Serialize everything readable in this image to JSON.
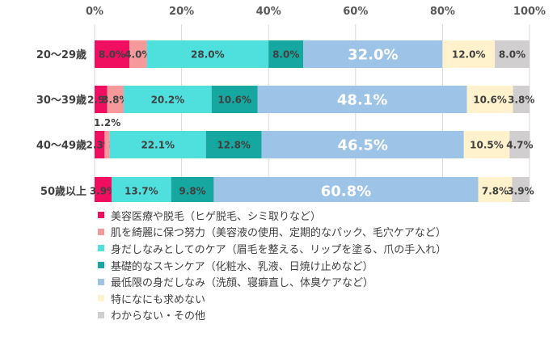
{
  "chart_data": {
    "type": "bar",
    "orientation": "horizontal",
    "stacked": "percent",
    "categories": [
      "20〜29歳",
      "30〜39歳",
      "40〜49歳",
      "50歳以上"
    ],
    "xlim": [
      0,
      100
    ],
    "x_ticks": [
      "0%",
      "20%",
      "40%",
      "60%",
      "80%",
      "100%"
    ],
    "grid": "vertical",
    "legend_position": "bottom",
    "series": [
      {
        "name": "美容医療や脱毛（ヒゲ脱毛、シミ取りなど）",
        "color": "#ef0e5f",
        "values": [
          8.0,
          2.9,
          2.3,
          3.9
        ],
        "labels": [
          "8.0%",
          "2.9%",
          "2.3%",
          "3.9%"
        ]
      },
      {
        "name": "肌を綺麗に保つ努力（美容液の使用、定期的なパック、毛穴ケアなど）",
        "color": "#f6999a",
        "values": [
          4.0,
          3.8,
          1.2,
          0
        ],
        "labels": [
          "4.0%",
          "3.8%",
          "1.2%",
          ""
        ]
      },
      {
        "name": "身だしなみとしてのケア（眉毛を整える、リップを塗る、爪の手入れ）",
        "color": "#4fe0de",
        "values": [
          28.0,
          20.2,
          22.1,
          13.7
        ],
        "labels": [
          "28.0%",
          "20.2%",
          "22.1%",
          "13.7%"
        ]
      },
      {
        "name": "基礎的なスキンケア（化粧水、乳液、日焼け止めなど）",
        "color": "#16a7a0",
        "values": [
          8.0,
          10.6,
          12.8,
          9.8
        ],
        "labels": [
          "8.0%",
          "10.6%",
          "12.8%",
          "9.8%"
        ]
      },
      {
        "name": "最低限の身だしなみ（洗顔、寝癖直し、体臭ケアなど）",
        "color": "#9dc3e6",
        "values": [
          32.0,
          48.1,
          46.5,
          60.8
        ],
        "labels": [
          "32.0%",
          "48.1%",
          "46.5%",
          "60.8%"
        ]
      },
      {
        "name": "特になにも求めない",
        "color": "#fff2cc",
        "values": [
          12.0,
          10.6,
          10.5,
          7.8
        ],
        "labels": [
          "12.0%",
          "10.6%",
          "10.5%",
          "7.8%"
        ]
      },
      {
        "name": "わからない・その他",
        "color": "#d0cece",
        "values": [
          8.0,
          3.8,
          4.7,
          3.9
        ],
        "labels": [
          "8.0%",
          "3.8%",
          "4.7%",
          "3.9%"
        ]
      }
    ]
  }
}
